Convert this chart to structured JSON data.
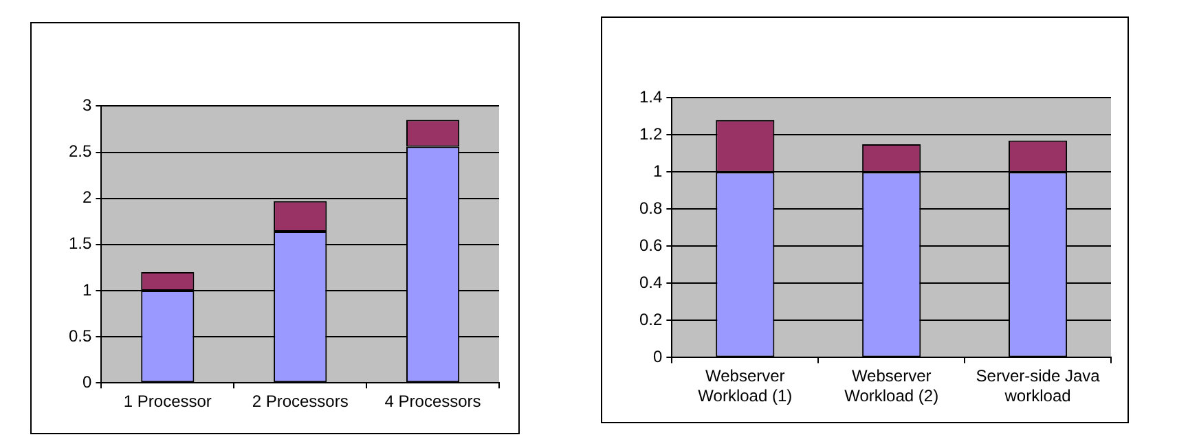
{
  "chart_data": [
    {
      "type": "bar",
      "stacked": true,
      "categories": [
        "1 Processor",
        "2 Processors",
        "4 Processors"
      ],
      "series": [
        {
          "color": "#9999ff",
          "values": [
            1.0,
            1.64,
            2.56
          ]
        },
        {
          "color": "#993366",
          "values": [
            0.2,
            0.33,
            0.29
          ]
        }
      ],
      "ylim": [
        0,
        3
      ],
      "yticks": [
        0,
        0.5,
        1,
        1.5,
        2,
        2.5,
        3
      ],
      "grid": "y",
      "legend": false
    },
    {
      "type": "bar",
      "stacked": true,
      "categories": [
        "Webserver Workload (1)",
        "Webserver Workload (2)",
        "Server-side Java workload"
      ],
      "series": [
        {
          "color": "#9999ff",
          "values": [
            1.0,
            1.0,
            1.0
          ]
        },
        {
          "color": "#993366",
          "values": [
            0.28,
            0.15,
            0.17
          ]
        }
      ],
      "ylim": [
        0,
        1.4
      ],
      "yticks": [
        0,
        0.2,
        0.4,
        0.6,
        0.8,
        1,
        1.2,
        1.4
      ],
      "grid": "y",
      "legend": false
    }
  ]
}
